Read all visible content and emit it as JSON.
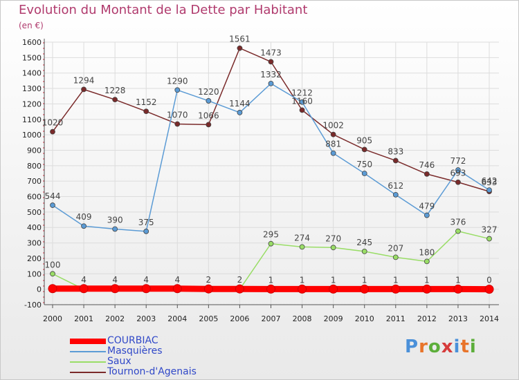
{
  "header": {
    "title": "Evolution du Montant de la Dette par Habitant",
    "unit": "(en €)"
  },
  "brand": {
    "text": "Proxiti",
    "letter_colors": [
      "#4a90d9",
      "#e8742a",
      "#5cae3a",
      "#d63b3b",
      "#4a90d9",
      "#e8742a",
      "#5cae3a"
    ]
  },
  "chart_data": {
    "type": "line",
    "x": [
      2000,
      2001,
      2002,
      2003,
      2004,
      2005,
      2006,
      2007,
      2008,
      2009,
      2010,
      2011,
      2012,
      2013,
      2014
    ],
    "ylim": [
      -100,
      1600
    ],
    "yticks": [
      -100,
      0,
      100,
      200,
      300,
      400,
      500,
      600,
      700,
      800,
      900,
      1000,
      1100,
      1200,
      1300,
      1400,
      1500,
      1600
    ],
    "grid": true,
    "legend_position": "bottom-left",
    "series": [
      {
        "name": "COURBIAC",
        "color": "#ff0000",
        "values": [
          4,
          4,
          4,
          4,
          4,
          2,
          2,
          1,
          1,
          1,
          1,
          1,
          1,
          1,
          0
        ],
        "labels": [
          "",
          "4",
          "4",
          "4",
          "4",
          "2",
          "2",
          "1",
          "1",
          "1",
          "1",
          "1",
          "1",
          "1",
          "0"
        ]
      },
      {
        "name": "Masquières",
        "color": "#5b9bd5",
        "values": [
          544,
          409,
          390,
          375,
          1290,
          1220,
          1144,
          1332,
          1212,
          881,
          750,
          612,
          479,
          772,
          642
        ],
        "labels": [
          "544",
          "409",
          "390",
          "375",
          "1290",
          "1220",
          "1144",
          "1332",
          "1212",
          "881",
          "750",
          "612",
          "479",
          "772",
          "642"
        ]
      },
      {
        "name": "Saux",
        "color": "#99dd66",
        "values": [
          100,
          0,
          0,
          0,
          0,
          0,
          0,
          295,
          274,
          270,
          245,
          207,
          180,
          376,
          327
        ],
        "labels": [
          "100",
          "",
          "",
          "",
          "",
          "",
          "",
          "295",
          "274",
          "270",
          "245",
          "207",
          "180",
          "376",
          "327"
        ]
      },
      {
        "name": "Tournon-d'Agenais",
        "color": "#7a2a2a",
        "values": [
          1020,
          1294,
          1228,
          1152,
          1070,
          1066,
          1561,
          1473,
          1160,
          1002,
          905,
          833,
          746,
          693,
          633
        ],
        "labels": [
          "1020",
          "1294",
          "1228",
          "1152",
          "1070",
          "1066",
          "1561",
          "1473",
          "1160",
          "1002",
          "905",
          "833",
          "746",
          "693",
          "633"
        ]
      }
    ]
  }
}
